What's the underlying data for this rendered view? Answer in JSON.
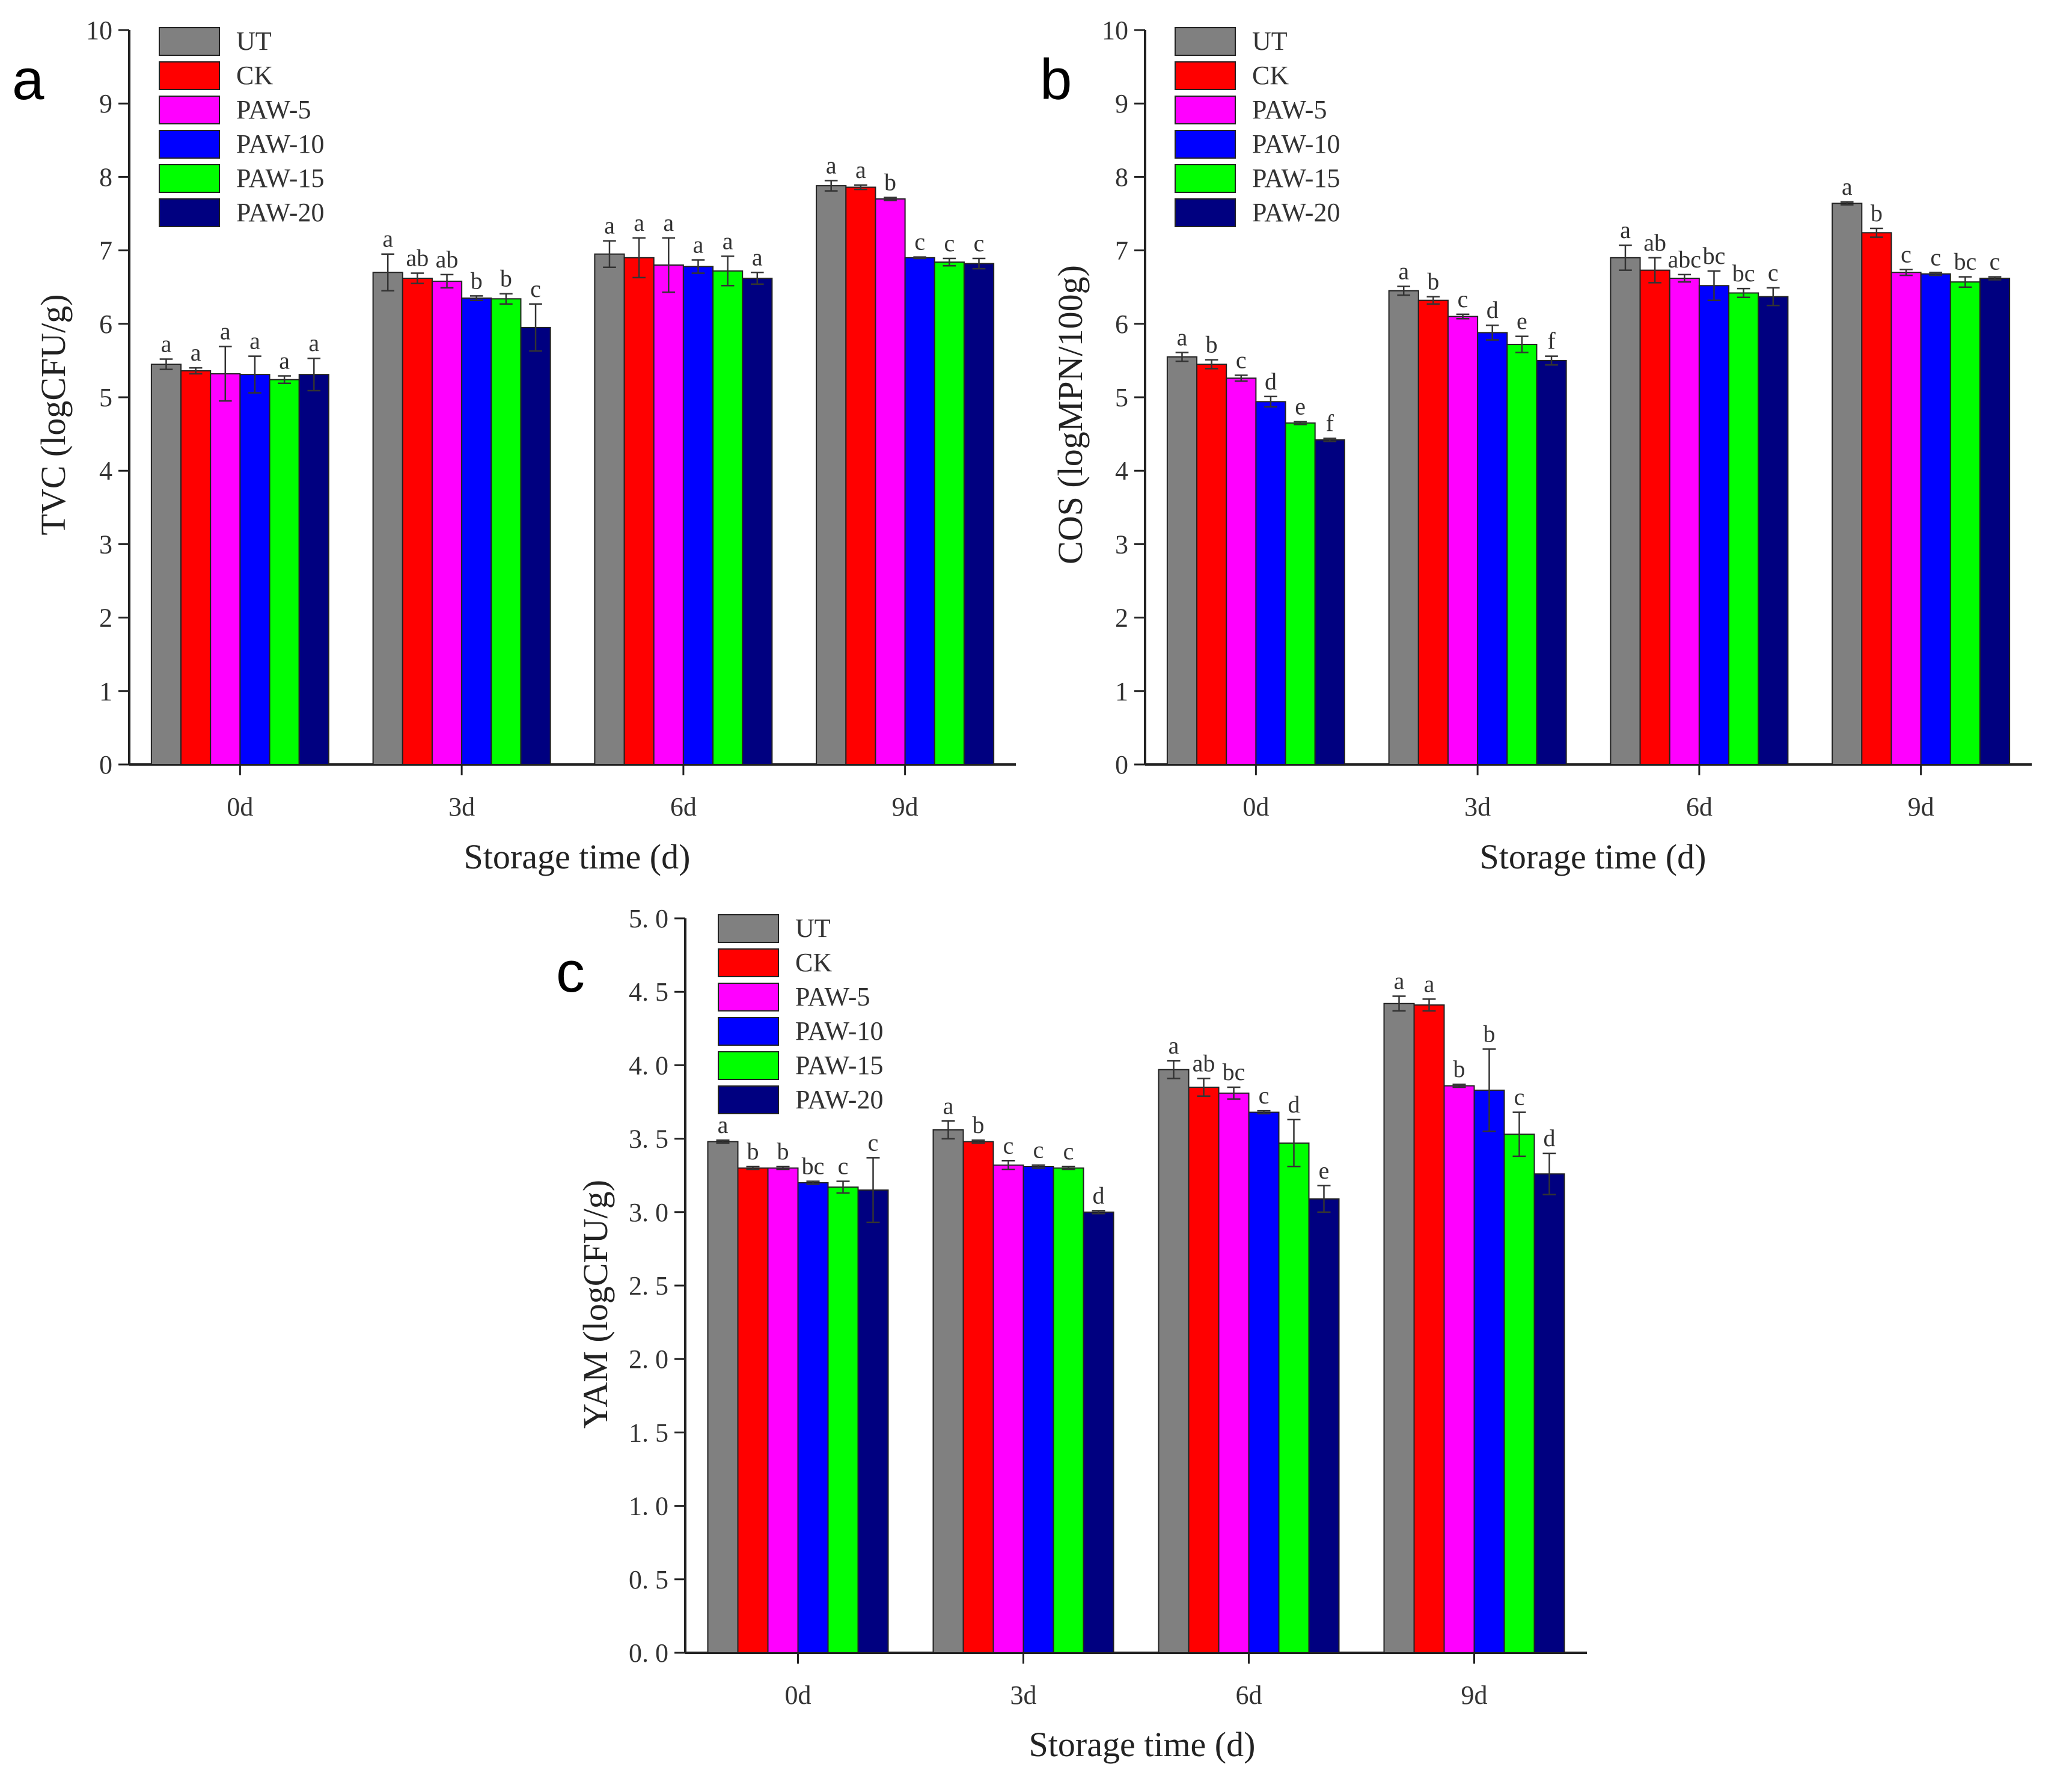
{
  "figure": {
    "series_names": [
      "UT",
      "CK",
      "PAW-5",
      "PAW-10",
      "PAW-15",
      "PAW-20"
    ],
    "series_colors": [
      "#808080",
      "#ff0000",
      "#ff00ff",
      "#0000ff",
      "#00ff00",
      "#000080"
    ]
  },
  "chart_data": [
    {
      "panel": "a",
      "type": "bar",
      "title": "",
      "xlabel": "Storage time (d)",
      "ylabel": "TVC (logCFU/g)",
      "ylim": [
        0,
        10
      ],
      "yticks": [
        "0",
        "1",
        "2",
        "3",
        "4",
        "5",
        "6",
        "7",
        "8",
        "9",
        "10"
      ],
      "categories": [
        "0d",
        "3d",
        "6d",
        "9d"
      ],
      "legend_position": "top-left",
      "series": [
        {
          "name": "UT",
          "values": [
            5.45,
            6.7,
            6.95,
            7.88
          ],
          "errors": [
            0.07,
            0.25,
            0.18,
            0.07
          ],
          "letters": [
            "a",
            "a",
            "a",
            "a"
          ]
        },
        {
          "name": "CK",
          "values": [
            5.36,
            6.62,
            6.9,
            7.86
          ],
          "errors": [
            0.04,
            0.07,
            0.27,
            0.03
          ],
          "letters": [
            "a",
            "ab",
            "a",
            "a"
          ]
        },
        {
          "name": "PAW-5",
          "values": [
            5.32,
            6.58,
            6.8,
            7.7
          ],
          "errors": [
            0.37,
            0.09,
            0.37,
            0.02
          ],
          "letters": [
            "a",
            "ab",
            "a",
            "b"
          ]
        },
        {
          "name": "PAW-10",
          "values": [
            5.31,
            6.35,
            6.78,
            6.9
          ],
          "errors": [
            0.25,
            0.03,
            0.09,
            0.01
          ],
          "letters": [
            "a",
            "b",
            "a",
            "c"
          ]
        },
        {
          "name": "PAW-15",
          "values": [
            5.24,
            6.34,
            6.72,
            6.84
          ],
          "errors": [
            0.05,
            0.07,
            0.2,
            0.05
          ],
          "letters": [
            "a",
            "b",
            "a",
            "c"
          ]
        },
        {
          "name": "PAW-20",
          "values": [
            5.31,
            5.95,
            6.62,
            6.82
          ],
          "errors": [
            0.22,
            0.32,
            0.08,
            0.07
          ],
          "letters": [
            "a",
            "c",
            "a",
            "c"
          ]
        }
      ]
    },
    {
      "panel": "b",
      "type": "bar",
      "title": "",
      "xlabel": "Storage time (d)",
      "ylabel": "COS (logMPN/100g)",
      "ylim": [
        0,
        10
      ],
      "yticks": [
        "0",
        "1",
        "2",
        "3",
        "4",
        "5",
        "6",
        "7",
        "8",
        "9",
        "10"
      ],
      "categories": [
        "0d",
        "3d",
        "6d",
        "9d"
      ],
      "legend_position": "top-left",
      "series": [
        {
          "name": "UT",
          "values": [
            5.55,
            6.45,
            6.9,
            7.64
          ],
          "errors": [
            0.06,
            0.06,
            0.17,
            0.02
          ],
          "letters": [
            "a",
            "a",
            "a",
            "a"
          ]
        },
        {
          "name": "CK",
          "values": [
            5.45,
            6.32,
            6.73,
            7.24
          ],
          "errors": [
            0.06,
            0.05,
            0.17,
            0.06
          ],
          "letters": [
            "b",
            "b",
            "ab",
            "b"
          ]
        },
        {
          "name": "PAW-5",
          "values": [
            5.26,
            6.1,
            6.62,
            6.7
          ],
          "errors": [
            0.04,
            0.03,
            0.05,
            0.04
          ],
          "letters": [
            "c",
            "c",
            "abc",
            "c"
          ]
        },
        {
          "name": "PAW-10",
          "values": [
            4.94,
            5.88,
            6.52,
            6.68
          ],
          "errors": [
            0.07,
            0.1,
            0.2,
            0.02
          ],
          "letters": [
            "d",
            "d",
            "bc",
            "c"
          ]
        },
        {
          "name": "PAW-15",
          "values": [
            4.65,
            5.72,
            6.42,
            6.57
          ],
          "errors": [
            0.02,
            0.11,
            0.06,
            0.07
          ],
          "letters": [
            "e",
            "e",
            "bc",
            "bc"
          ]
        },
        {
          "name": "PAW-20",
          "values": [
            4.42,
            5.5,
            6.37,
            6.62
          ],
          "errors": [
            0.02,
            0.06,
            0.12,
            0.02
          ],
          "letters": [
            "f",
            "f",
            "c",
            "c"
          ]
        }
      ]
    },
    {
      "panel": "c",
      "type": "bar",
      "title": "",
      "xlabel": "Storage time (d)",
      "ylabel": "YAM (logCFU/g)",
      "ylim": [
        0,
        5
      ],
      "yticks": [
        "0. 0",
        "0. 5",
        "1. 0",
        "1. 5",
        "2. 0",
        "2. 5",
        "3. 0",
        "3. 5",
        "4. 0",
        "4. 5",
        "5. 0"
      ],
      "categories": [
        "0d",
        "3d",
        "6d",
        "9d"
      ],
      "legend_position": "top-left",
      "series": [
        {
          "name": "UT",
          "values": [
            3.48,
            3.56,
            3.97,
            4.42
          ],
          "errors": [
            0.01,
            0.06,
            0.06,
            0.05
          ],
          "letters": [
            "a",
            "a",
            "a",
            "a"
          ]
        },
        {
          "name": "CK",
          "values": [
            3.3,
            3.48,
            3.85,
            4.41
          ],
          "errors": [
            0.01,
            0.01,
            0.06,
            0.04
          ],
          "letters": [
            "b",
            "b",
            "ab",
            "a"
          ]
        },
        {
          "name": "PAW-5",
          "values": [
            3.3,
            3.32,
            3.81,
            3.86
          ],
          "errors": [
            0.01,
            0.03,
            0.04,
            0.01
          ],
          "letters": [
            "b",
            "c",
            "bc",
            "b"
          ]
        },
        {
          "name": "PAW-10",
          "values": [
            3.2,
            3.31,
            3.68,
            3.83
          ],
          "errors": [
            0.01,
            0.01,
            0.01,
            0.28
          ],
          "letters": [
            "bc",
            "c",
            "c",
            "b"
          ]
        },
        {
          "name": "PAW-15",
          "values": [
            3.17,
            3.3,
            3.47,
            3.53
          ],
          "errors": [
            0.04,
            0.01,
            0.16,
            0.15
          ],
          "letters": [
            "c",
            "c",
            "d",
            "c"
          ]
        },
        {
          "name": "PAW-20",
          "values": [
            3.15,
            3.0,
            3.09,
            3.26
          ],
          "errors": [
            0.22,
            0.01,
            0.09,
            0.14
          ],
          "letters": [
            "c",
            "d",
            "e",
            "d"
          ]
        }
      ]
    }
  ]
}
